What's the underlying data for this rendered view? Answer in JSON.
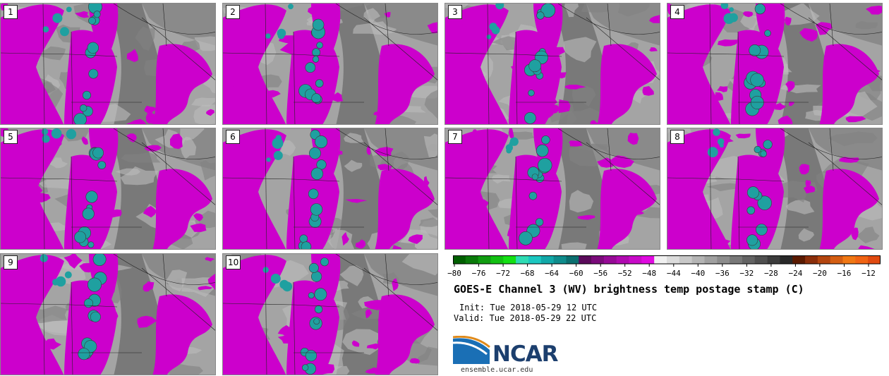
{
  "panels": [
    {
      "label": "1"
    },
    {
      "label": "2"
    },
    {
      "label": "3"
    },
    {
      "label": "4"
    },
    {
      "label": "5"
    },
    {
      "label": "6"
    },
    {
      "label": "7"
    },
    {
      "label": "8"
    },
    {
      "label": "9"
    },
    {
      "label": "10"
    }
  ],
  "colorbar": {
    "labels": [
      "−80",
      "−76",
      "−72",
      "−68",
      "−64",
      "−60",
      "−56",
      "−52",
      "−48",
      "−44",
      "−40",
      "−36",
      "−32",
      "−28",
      "−24",
      "−20",
      "−16",
      "−12"
    ],
    "colors": [
      "#005f00",
      "#0a7a0a",
      "#119c11",
      "#12c012",
      "#14e014",
      "#2fdcb4",
      "#1cc7c0",
      "#12a8a8",
      "#0f8c8c",
      "#0b6f6f",
      "#5a0a5a",
      "#7a0a7a",
      "#960a96",
      "#b00ab0",
      "#c80ac8",
      "#e00ae0",
      "#f0f0f0",
      "#dcdcdc",
      "#c8c8c8",
      "#b4b4b4",
      "#a0a0a0",
      "#8c8c8c",
      "#787878",
      "#646464",
      "#505050",
      "#3c3c3c",
      "#282828",
      "#5a1a00",
      "#8a2e0a",
      "#b3450f",
      "#d45e12",
      "#f07814",
      "#f06414",
      "#e04a10"
    ]
  },
  "title": "GOES-E Channel 3 (WV) brightness temp postage stamp (C)",
  "init": "Init: Tue 2018-05-29 12 UTC",
  "valid": "Valid: Tue 2018-05-29 22 UTC",
  "logo": {
    "text": "NCAR",
    "url": "ensemble.ucar.edu"
  },
  "colors": {
    "moist": "#cc00cc",
    "cold_core": "#1fa0a0",
    "dry": "#555555",
    "background": "#9a9a9a"
  }
}
